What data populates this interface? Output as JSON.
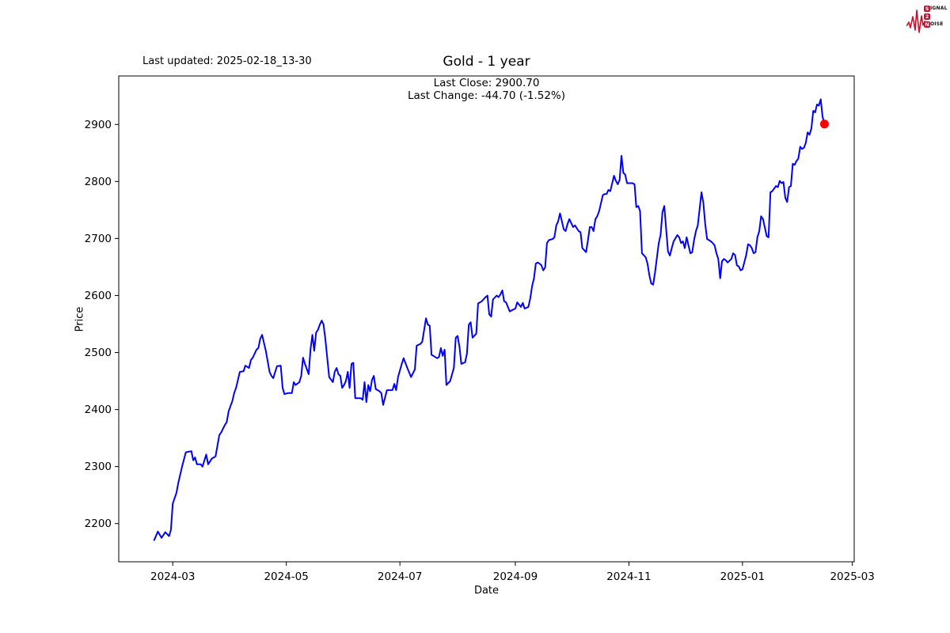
{
  "header": {
    "last_updated": "Last updated: 2025-02-18_13-30",
    "logo": {
      "accent": "#c8102e",
      "row1_initial": "S",
      "row1_rest": "IGNAL",
      "row2_initial": "2",
      "row2_rest": "",
      "row3_initial": "N",
      "row3_rest": "OISE"
    }
  },
  "chart_data": {
    "type": "line",
    "title": "Gold - 1 year",
    "annotation": {
      "line1": "Last Close: 2900.70",
      "line2": "Last Change: -44.70 (-1.52%)"
    },
    "xlabel": "Date",
    "ylabel": "Price",
    "last_close": 2900.7,
    "last_change": -44.7,
    "last_change_pct": -1.52,
    "line_color": "#0000ff",
    "last_point_color": "#ff0000",
    "spine_color": "#000000",
    "grid": false,
    "legend": "none",
    "x_ticks": [
      "2024-03",
      "2024-05",
      "2024-07",
      "2024-09",
      "2024-11",
      "2025-01",
      "2025-03"
    ],
    "y_ticks": [
      2200,
      2300,
      2400,
      2500,
      2600,
      2700,
      2800,
      2900
    ],
    "xlim": [
      "2024-02-01",
      "2025-03-02"
    ],
    "ylim": [
      2133,
      2985
    ],
    "points": [
      [
        "2024-02-20",
        2171
      ],
      [
        "2024-02-22",
        2186
      ],
      [
        "2024-02-24",
        2175
      ],
      [
        "2024-02-26",
        2185
      ],
      [
        "2024-02-28",
        2178
      ],
      [
        "2024-02-29",
        2189
      ],
      [
        "2024-03-01",
        2235
      ],
      [
        "2024-03-03",
        2254
      ],
      [
        "2024-03-04",
        2272
      ],
      [
        "2024-03-06",
        2300
      ],
      [
        "2024-03-08",
        2325
      ],
      [
        "2024-03-11",
        2327
      ],
      [
        "2024-03-12",
        2311
      ],
      [
        "2024-03-13",
        2316
      ],
      [
        "2024-03-14",
        2304
      ],
      [
        "2024-03-16",
        2304
      ],
      [
        "2024-03-17",
        2300
      ],
      [
        "2024-03-19",
        2321
      ],
      [
        "2024-03-20",
        2304
      ],
      [
        "2024-03-22",
        2314
      ],
      [
        "2024-03-24",
        2318
      ],
      [
        "2024-03-26",
        2355
      ],
      [
        "2024-03-27",
        2360
      ],
      [
        "2024-03-29",
        2373
      ],
      [
        "2024-03-30",
        2378
      ],
      [
        "2024-03-31",
        2397
      ],
      [
        "2024-04-02",
        2415
      ],
      [
        "2024-04-03",
        2429
      ],
      [
        "2024-04-04",
        2438
      ],
      [
        "2024-04-06",
        2466
      ],
      [
        "2024-04-08",
        2467
      ],
      [
        "2024-04-09",
        2477
      ],
      [
        "2024-04-11",
        2473
      ],
      [
        "2024-04-12",
        2487
      ],
      [
        "2024-04-13",
        2491
      ],
      [
        "2024-04-15",
        2505
      ],
      [
        "2024-04-16",
        2508
      ],
      [
        "2024-04-17",
        2524
      ],
      [
        "2024-04-18",
        2531
      ],
      [
        "2024-04-19",
        2517
      ],
      [
        "2024-04-20",
        2503
      ],
      [
        "2024-04-21",
        2484
      ],
      [
        "2024-04-22",
        2466
      ],
      [
        "2024-04-23",
        2459
      ],
      [
        "2024-04-24",
        2455
      ],
      [
        "2024-04-25",
        2466
      ],
      [
        "2024-04-26",
        2476
      ],
      [
        "2024-04-28",
        2477
      ],
      [
        "2024-04-29",
        2438
      ],
      [
        "2024-04-30",
        2427
      ],
      [
        "2024-05-02",
        2429
      ],
      [
        "2024-05-04",
        2429
      ],
      [
        "2024-05-05",
        2448
      ],
      [
        "2024-05-06",
        2443
      ],
      [
        "2024-05-08",
        2448
      ],
      [
        "2024-05-09",
        2459
      ],
      [
        "2024-05-10",
        2491
      ],
      [
        "2024-05-11",
        2480
      ],
      [
        "2024-05-13",
        2462
      ],
      [
        "2024-05-14",
        2505
      ],
      [
        "2024-05-15",
        2531
      ],
      [
        "2024-05-16",
        2503
      ],
      [
        "2024-05-17",
        2535
      ],
      [
        "2024-05-18",
        2540
      ],
      [
        "2024-05-19",
        2549
      ],
      [
        "2024-05-20",
        2556
      ],
      [
        "2024-05-21",
        2549
      ],
      [
        "2024-05-22",
        2522
      ],
      [
        "2024-05-23",
        2490
      ],
      [
        "2024-05-24",
        2457
      ],
      [
        "2024-05-26",
        2448
      ],
      [
        "2024-05-27",
        2466
      ],
      [
        "2024-05-28",
        2473
      ],
      [
        "2024-05-29",
        2462
      ],
      [
        "2024-05-30",
        2459
      ],
      [
        "2024-05-31",
        2438
      ],
      [
        "2024-06-01",
        2443
      ],
      [
        "2024-06-02",
        2450
      ],
      [
        "2024-06-03",
        2466
      ],
      [
        "2024-06-04",
        2438
      ],
      [
        "2024-06-05",
        2480
      ],
      [
        "2024-06-06",
        2482
      ],
      [
        "2024-06-07",
        2420
      ],
      [
        "2024-06-08",
        2420
      ],
      [
        "2024-06-10",
        2420
      ],
      [
        "2024-06-11",
        2417
      ],
      [
        "2024-06-12",
        2448
      ],
      [
        "2024-06-13",
        2413
      ],
      [
        "2024-06-14",
        2443
      ],
      [
        "2024-06-15",
        2432
      ],
      [
        "2024-06-16",
        2452
      ],
      [
        "2024-06-17",
        2459
      ],
      [
        "2024-06-18",
        2436
      ],
      [
        "2024-06-20",
        2432
      ],
      [
        "2024-06-21",
        2429
      ],
      [
        "2024-06-22",
        2408
      ],
      [
        "2024-06-24",
        2434
      ],
      [
        "2024-06-25",
        2434
      ],
      [
        "2024-06-27",
        2434
      ],
      [
        "2024-06-28",
        2445
      ],
      [
        "2024-06-29",
        2434
      ],
      [
        "2024-06-30",
        2457
      ],
      [
        "2024-07-02",
        2480
      ],
      [
        "2024-07-03",
        2490
      ],
      [
        "2024-07-05",
        2473
      ],
      [
        "2024-07-07",
        2457
      ],
      [
        "2024-07-09",
        2470
      ],
      [
        "2024-07-10",
        2512
      ],
      [
        "2024-07-12",
        2515
      ],
      [
        "2024-07-13",
        2519
      ],
      [
        "2024-07-15",
        2560
      ],
      [
        "2024-07-16",
        2549
      ],
      [
        "2024-07-17",
        2547
      ],
      [
        "2024-07-18",
        2496
      ],
      [
        "2024-07-19",
        2494
      ],
      [
        "2024-07-21",
        2490
      ],
      [
        "2024-07-22",
        2492
      ],
      [
        "2024-07-23",
        2508
      ],
      [
        "2024-07-24",
        2494
      ],
      [
        "2024-07-25",
        2505
      ],
      [
        "2024-07-26",
        2443
      ],
      [
        "2024-07-28",
        2450
      ],
      [
        "2024-07-30",
        2473
      ],
      [
        "2024-07-31",
        2526
      ],
      [
        "2024-08-01",
        2529
      ],
      [
        "2024-08-02",
        2510
      ],
      [
        "2024-08-03",
        2480
      ],
      [
        "2024-08-05",
        2483
      ],
      [
        "2024-08-06",
        2498
      ],
      [
        "2024-08-07",
        2549
      ],
      [
        "2024-08-08",
        2553
      ],
      [
        "2024-08-09",
        2526
      ],
      [
        "2024-08-11",
        2533
      ],
      [
        "2024-08-12",
        2586
      ],
      [
        "2024-08-13",
        2588
      ],
      [
        "2024-08-14",
        2590
      ],
      [
        "2024-08-16",
        2597
      ],
      [
        "2024-08-17",
        2600
      ],
      [
        "2024-08-18",
        2567
      ],
      [
        "2024-08-19",
        2563
      ],
      [
        "2024-08-20",
        2593
      ],
      [
        "2024-08-22",
        2600
      ],
      [
        "2024-08-23",
        2597
      ],
      [
        "2024-08-24",
        2602
      ],
      [
        "2024-08-25",
        2609
      ],
      [
        "2024-08-26",
        2590
      ],
      [
        "2024-08-27",
        2588
      ],
      [
        "2024-08-29",
        2572
      ],
      [
        "2024-08-30",
        2574
      ],
      [
        "2024-09-01",
        2577
      ],
      [
        "2024-09-02",
        2588
      ],
      [
        "2024-09-04",
        2580
      ],
      [
        "2024-09-05",
        2587
      ],
      [
        "2024-09-06",
        2577
      ],
      [
        "2024-09-08",
        2580
      ],
      [
        "2024-09-09",
        2595
      ],
      [
        "2024-09-10",
        2616
      ],
      [
        "2024-09-11",
        2630
      ],
      [
        "2024-09-12",
        2656
      ],
      [
        "2024-09-13",
        2658
      ],
      [
        "2024-09-14",
        2656
      ],
      [
        "2024-09-15",
        2653
      ],
      [
        "2024-09-16",
        2644
      ],
      [
        "2024-09-17",
        2649
      ],
      [
        "2024-09-18",
        2692
      ],
      [
        "2024-09-19",
        2697
      ],
      [
        "2024-09-21",
        2699
      ],
      [
        "2024-09-22",
        2702
      ],
      [
        "2024-09-23",
        2723
      ],
      [
        "2024-09-24",
        2730
      ],
      [
        "2024-09-25",
        2744
      ],
      [
        "2024-09-26",
        2730
      ],
      [
        "2024-09-27",
        2716
      ],
      [
        "2024-09-28",
        2713
      ],
      [
        "2024-09-29",
        2725
      ],
      [
        "2024-09-30",
        2734
      ],
      [
        "2024-10-02",
        2720
      ],
      [
        "2024-10-03",
        2723
      ],
      [
        "2024-10-04",
        2718
      ],
      [
        "2024-10-05",
        2713
      ],
      [
        "2024-10-06",
        2711
      ],
      [
        "2024-10-07",
        2683
      ],
      [
        "2024-10-09",
        2676
      ],
      [
        "2024-10-10",
        2697
      ],
      [
        "2024-10-11",
        2720
      ],
      [
        "2024-10-12",
        2720
      ],
      [
        "2024-10-13",
        2713
      ],
      [
        "2024-10-14",
        2734
      ],
      [
        "2024-10-15",
        2739
      ],
      [
        "2024-10-16",
        2748
      ],
      [
        "2024-10-18",
        2776
      ],
      [
        "2024-10-19",
        2778
      ],
      [
        "2024-10-20",
        2778
      ],
      [
        "2024-10-21",
        2785
      ],
      [
        "2024-10-22",
        2783
      ],
      [
        "2024-10-24",
        2810
      ],
      [
        "2024-10-25",
        2801
      ],
      [
        "2024-10-26",
        2795
      ],
      [
        "2024-10-27",
        2803
      ],
      [
        "2024-10-28",
        2845
      ],
      [
        "2024-10-29",
        2815
      ],
      [
        "2024-10-30",
        2812
      ],
      [
        "2024-10-31",
        2797
      ],
      [
        "2024-11-02",
        2797
      ],
      [
        "2024-11-03",
        2797
      ],
      [
        "2024-11-04",
        2795
      ],
      [
        "2024-11-05",
        2755
      ],
      [
        "2024-11-06",
        2757
      ],
      [
        "2024-11-07",
        2748
      ],
      [
        "2024-11-08",
        2674
      ],
      [
        "2024-11-10",
        2667
      ],
      [
        "2024-11-11",
        2656
      ],
      [
        "2024-11-12",
        2635
      ],
      [
        "2024-11-13",
        2621
      ],
      [
        "2024-11-14",
        2619
      ],
      [
        "2024-11-15",
        2639
      ],
      [
        "2024-11-17",
        2692
      ],
      [
        "2024-11-18",
        2706
      ],
      [
        "2024-11-19",
        2746
      ],
      [
        "2024-11-20",
        2757
      ],
      [
        "2024-11-21",
        2716
      ],
      [
        "2024-11-22",
        2677
      ],
      [
        "2024-11-23",
        2670
      ],
      [
        "2024-11-24",
        2683
      ],
      [
        "2024-11-25",
        2695
      ],
      [
        "2024-11-27",
        2706
      ],
      [
        "2024-11-28",
        2702
      ],
      [
        "2024-11-29",
        2692
      ],
      [
        "2024-11-30",
        2695
      ],
      [
        "2024-12-01",
        2683
      ],
      [
        "2024-12-02",
        2702
      ],
      [
        "2024-12-04",
        2674
      ],
      [
        "2024-12-05",
        2676
      ],
      [
        "2024-12-06",
        2697
      ],
      [
        "2024-12-07",
        2713
      ],
      [
        "2024-12-08",
        2723
      ],
      [
        "2024-12-10",
        2781
      ],
      [
        "2024-12-11",
        2762
      ],
      [
        "2024-12-12",
        2725
      ],
      [
        "2024-12-13",
        2699
      ],
      [
        "2024-12-14",
        2697
      ],
      [
        "2024-12-15",
        2695
      ],
      [
        "2024-12-16",
        2692
      ],
      [
        "2024-12-17",
        2688
      ],
      [
        "2024-12-18",
        2674
      ],
      [
        "2024-12-19",
        2664
      ],
      [
        "2024-12-20",
        2630
      ],
      [
        "2024-12-21",
        2660
      ],
      [
        "2024-12-22",
        2664
      ],
      [
        "2024-12-23",
        2662
      ],
      [
        "2024-12-24",
        2658
      ],
      [
        "2024-12-26",
        2664
      ],
      [
        "2024-12-27",
        2674
      ],
      [
        "2024-12-28",
        2671
      ],
      [
        "2024-12-29",
        2653
      ],
      [
        "2024-12-30",
        2651
      ],
      [
        "2024-12-31",
        2644
      ],
      [
        "2025-01-01",
        2646
      ],
      [
        "2025-01-03",
        2671
      ],
      [
        "2025-01-04",
        2690
      ],
      [
        "2025-01-05",
        2688
      ],
      [
        "2025-01-06",
        2683
      ],
      [
        "2025-01-07",
        2674
      ],
      [
        "2025-01-08",
        2676
      ],
      [
        "2025-01-09",
        2702
      ],
      [
        "2025-01-10",
        2713
      ],
      [
        "2025-01-11",
        2739
      ],
      [
        "2025-01-12",
        2734
      ],
      [
        "2025-01-14",
        2704
      ],
      [
        "2025-01-15",
        2702
      ],
      [
        "2025-01-16",
        2781
      ],
      [
        "2025-01-17",
        2783
      ],
      [
        "2025-01-19",
        2792
      ],
      [
        "2025-01-20",
        2790
      ],
      [
        "2025-01-21",
        2801
      ],
      [
        "2025-01-22",
        2797
      ],
      [
        "2025-01-23",
        2799
      ],
      [
        "2025-01-24",
        2771
      ],
      [
        "2025-01-25",
        2764
      ],
      [
        "2025-01-26",
        2790
      ],
      [
        "2025-01-27",
        2792
      ],
      [
        "2025-01-28",
        2831
      ],
      [
        "2025-01-29",
        2829
      ],
      [
        "2025-01-30",
        2836
      ],
      [
        "2025-01-31",
        2840
      ],
      [
        "2025-02-01",
        2861
      ],
      [
        "2025-02-02",
        2857
      ],
      [
        "2025-02-03",
        2859
      ],
      [
        "2025-02-04",
        2868
      ],
      [
        "2025-02-05",
        2886
      ],
      [
        "2025-02-06",
        2882
      ],
      [
        "2025-02-07",
        2893
      ],
      [
        "2025-02-08",
        2924
      ],
      [
        "2025-02-09",
        2921
      ],
      [
        "2025-02-10",
        2935
      ],
      [
        "2025-02-11",
        2933
      ],
      [
        "2025-02-12",
        2944
      ],
      [
        "2025-02-13",
        2914
      ],
      [
        "2025-02-14",
        2900.7
      ]
    ]
  }
}
